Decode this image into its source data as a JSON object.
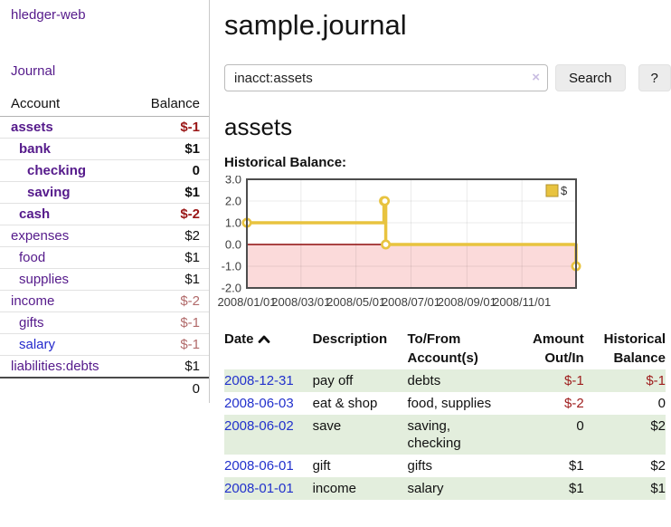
{
  "sidebar": {
    "brand": "hledger-web",
    "nav_journal": "Journal",
    "accounts_table": {
      "col_account": "Account",
      "col_balance": "Balance",
      "rows": [
        {
          "name": "assets",
          "level": 1,
          "bold": true,
          "balance": "$-1",
          "balance_style": "neg-bold"
        },
        {
          "name": "bank",
          "level": 2,
          "bold": true,
          "balance": "$1",
          "balance_style": "pos-bold"
        },
        {
          "name": "checking",
          "level": 3,
          "bold": true,
          "balance": "0",
          "balance_style": "pos-bold"
        },
        {
          "name": "saving",
          "level": 3,
          "bold": true,
          "balance": "$1",
          "balance_style": "pos-bold"
        },
        {
          "name": "cash",
          "level": 2,
          "bold": true,
          "balance": "$-2",
          "balance_style": "neg-bold"
        },
        {
          "name": "expenses",
          "level": 1,
          "bold": false,
          "balance": "$2",
          "balance_style": "pos"
        },
        {
          "name": "food",
          "level": 2,
          "bold": false,
          "balance": "$1",
          "balance_style": "pos"
        },
        {
          "name": "supplies",
          "level": 2,
          "bold": false,
          "balance": "$1",
          "balance_style": "pos"
        },
        {
          "name": "income",
          "level": 1,
          "bold": false,
          "balance": "$-2",
          "balance_style": "neg-muted"
        },
        {
          "name": "gifts",
          "level": 2,
          "bold": false,
          "balance": "$-1",
          "balance_style": "neg-muted"
        },
        {
          "name": "salary",
          "level": 2,
          "bold": false,
          "link_state": "unvisited",
          "balance": "$-1",
          "balance_style": "neg-muted"
        },
        {
          "name": "liabilities:debts",
          "level": 1,
          "bold": false,
          "balance": "$1",
          "balance_style": "pos"
        }
      ],
      "total": "0"
    }
  },
  "main": {
    "title": "sample.journal",
    "search": {
      "value": "inacct:assets",
      "clear_icon": "×",
      "button": "Search",
      "help_button": "?"
    },
    "account_heading": "assets",
    "chart_heading": "Historical Balance:",
    "register_table": {
      "headers": {
        "date": "Date",
        "description": "Description",
        "accounts": "To/From Account(s)",
        "amount": "Amount Out/In",
        "balance": "Historical Balance"
      },
      "sort": "date-ascending",
      "rows": [
        {
          "date": "2008-12-31",
          "description": "pay off",
          "accounts": "debts",
          "amount": "$-1",
          "amount_negative": true,
          "balance": "$-1",
          "balance_negative": true
        },
        {
          "date": "2008-06-03",
          "description": "eat & shop",
          "accounts": "food, supplies",
          "amount": "$-2",
          "amount_negative": true,
          "balance": "0",
          "balance_negative": false
        },
        {
          "date": "2008-06-02",
          "description": "save",
          "accounts": "saving,\nchecking",
          "amount": "0",
          "amount_negative": false,
          "balance": "$2",
          "balance_negative": false
        },
        {
          "date": "2008-06-01",
          "description": "gift",
          "accounts": "gifts",
          "amount": "$1",
          "amount_negative": false,
          "balance": "$2",
          "balance_negative": false
        },
        {
          "date": "2008-01-01",
          "description": "income",
          "accounts": "salary",
          "amount": "$1",
          "amount_negative": false,
          "balance": "$1",
          "balance_negative": false
        }
      ]
    }
  },
  "chart_data": {
    "type": "line",
    "subtype": "step-after",
    "title": "Historical Balance:",
    "series": [
      {
        "name": "$",
        "points": [
          [
            "2008-01-01",
            1.0
          ],
          [
            "2008-06-01",
            2.0
          ],
          [
            "2008-06-02",
            2.0
          ],
          [
            "2008-06-03",
            0.0
          ],
          [
            "2008-12-31",
            -1.0
          ]
        ]
      }
    ],
    "x_range": [
      "2008-01-01",
      "2008-12-31"
    ],
    "x_ticks": [
      "2008/01/01",
      "2008/03/01",
      "2008/05/01",
      "2008/07/01",
      "2008/09/01",
      "2008/11/01"
    ],
    "y_ticks": [
      3.0,
      2.0,
      1.0,
      0.0,
      -1.0,
      -2.0
    ],
    "ylim": [
      -2.0,
      3.0
    ],
    "legend": {
      "label": "$",
      "position": "top-right"
    },
    "grid": true,
    "negative_region_shaded": true,
    "colors": {
      "line": "#e8c33f",
      "marker_fill": "#ffffff",
      "negative_region": "#fbdada",
      "zero_line": "#8e0b0b",
      "border": "#4d4d4d",
      "tick_text": "#3d3d3d"
    }
  }
}
